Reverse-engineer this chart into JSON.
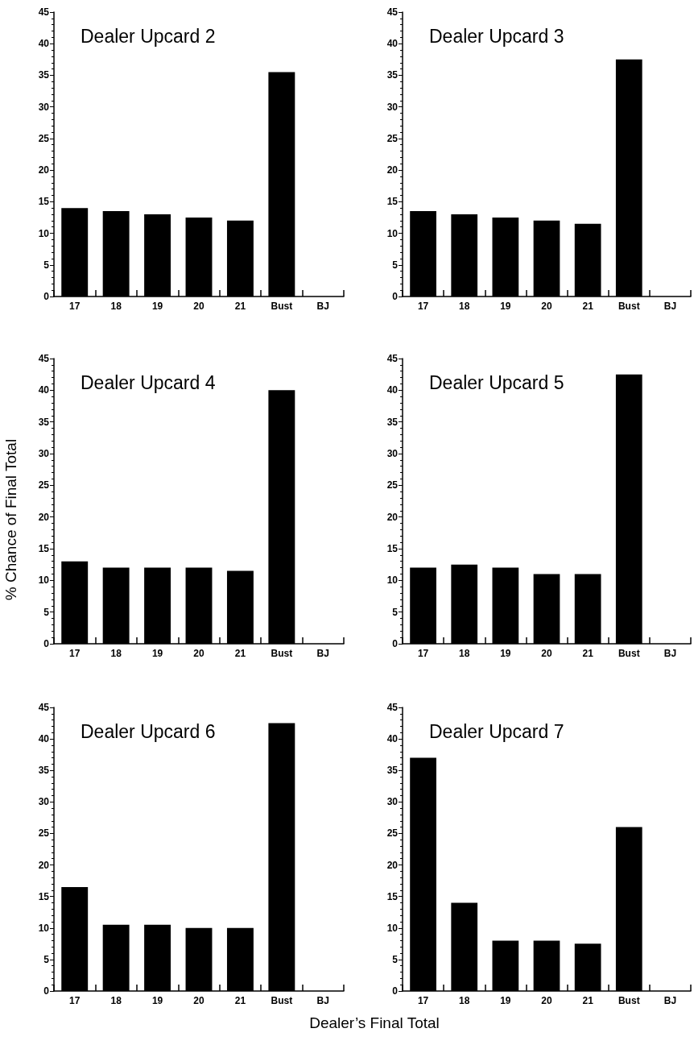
{
  "chart_data": [
    {
      "type": "bar",
      "title": "Dealer Upcard 2",
      "categories": [
        "17",
        "18",
        "19",
        "20",
        "21",
        "Bust",
        "BJ"
      ],
      "values": [
        14,
        13.5,
        13,
        12.5,
        12,
        35.5,
        0
      ],
      "color": "#000000",
      "ylim": [
        0,
        45
      ],
      "yticks": [
        0,
        5,
        10,
        15,
        20,
        25,
        30,
        35,
        40,
        45
      ],
      "grid": false
    },
    {
      "type": "bar",
      "title": "Dealer Upcard 3",
      "categories": [
        "17",
        "18",
        "19",
        "20",
        "21",
        "Bust",
        "BJ"
      ],
      "values": [
        13.5,
        13,
        12.5,
        12,
        11.5,
        37.5,
        0
      ],
      "color": "#000000",
      "ylim": [
        0,
        45
      ],
      "yticks": [
        0,
        5,
        10,
        15,
        20,
        25,
        30,
        35,
        40,
        45
      ],
      "grid": false
    },
    {
      "type": "bar",
      "title": "Dealer Upcard 4",
      "ylabel": "% Chance of Final Total",
      "categories": [
        "17",
        "18",
        "19",
        "20",
        "21",
        "Bust",
        "BJ"
      ],
      "values": [
        13,
        12,
        12,
        12,
        11.5,
        40,
        0
      ],
      "color": "#000000",
      "ylim": [
        0,
        45
      ],
      "yticks": [
        0,
        5,
        10,
        15,
        20,
        25,
        30,
        35,
        40,
        45
      ],
      "grid": false
    },
    {
      "type": "bar",
      "title": "Dealer Upcard 5",
      "categories": [
        "17",
        "18",
        "19",
        "20",
        "21",
        "Bust",
        "BJ"
      ],
      "values": [
        12,
        12.5,
        12,
        11,
        11,
        42.5,
        0
      ],
      "color": "#000000",
      "ylim": [
        0,
        45
      ],
      "yticks": [
        0,
        5,
        10,
        15,
        20,
        25,
        30,
        35,
        40,
        45
      ],
      "grid": false
    },
    {
      "type": "bar",
      "title": "Dealer Upcard 6",
      "xlabel": "Dealer’s Final Total",
      "categories": [
        "17",
        "18",
        "19",
        "20",
        "21",
        "Bust",
        "BJ"
      ],
      "values": [
        16.5,
        10.5,
        10.5,
        10,
        10,
        42.5,
        0
      ],
      "color": "#000000",
      "ylim": [
        0,
        45
      ],
      "yticks": [
        0,
        5,
        10,
        15,
        20,
        25,
        30,
        35,
        40,
        45
      ],
      "grid": false
    },
    {
      "type": "bar",
      "title": "Dealer Upcard 7",
      "categories": [
        "17",
        "18",
        "19",
        "20",
        "21",
        "Bust",
        "BJ"
      ],
      "values": [
        37,
        14,
        8,
        8,
        7.5,
        26,
        0
      ],
      "color": "#000000",
      "ylim": [
        0,
        45
      ],
      "yticks": [
        0,
        5,
        10,
        15,
        20,
        25,
        30,
        35,
        40,
        45
      ],
      "grid": false
    }
  ]
}
